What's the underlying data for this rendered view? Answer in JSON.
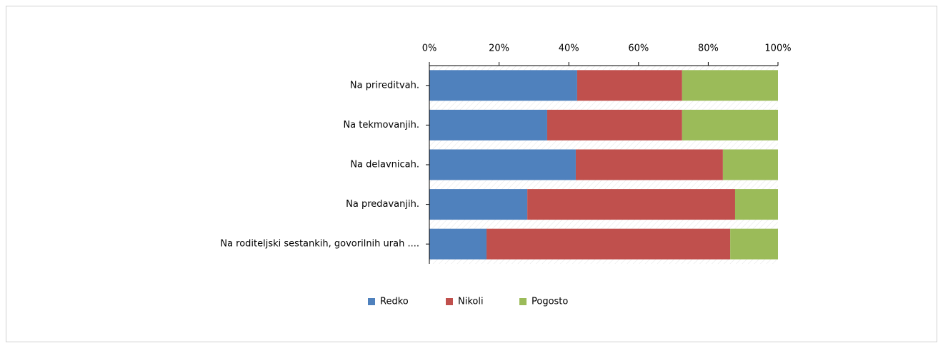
{
  "chart_data": {
    "type": "stacked-barh",
    "categories": [
      "Na prireditvah.",
      "Na tekmovanjih.",
      "Na delavnicah.",
      "Na predavanjih.",
      "Na roditeljski sestankih, govorilnih urah ...."
    ],
    "series": [
      {
        "name": "Redko",
        "color": "#4f81bd",
        "values": [
          42.4,
          33.8,
          42.0,
          28.1,
          16.4
        ]
      },
      {
        "name": "Nikoli",
        "color": "#c0504d",
        "values": [
          30.1,
          38.7,
          42.2,
          59.6,
          69.9
        ]
      },
      {
        "name": "Pogosto",
        "color": "#9bbb59",
        "values": [
          27.5,
          27.5,
          15.8,
          12.3,
          13.7
        ]
      }
    ],
    "xlim": [
      0,
      100
    ],
    "xticks": [
      {
        "value": 0,
        "label": "0%"
      },
      {
        "value": 20,
        "label": "20%"
      },
      {
        "value": 40,
        "label": "40%"
      },
      {
        "value": 60,
        "label": "60%"
      },
      {
        "value": 80,
        "label": "80%"
      },
      {
        "value": 100,
        "label": "100%"
      }
    ],
    "legend": "bottom"
  }
}
